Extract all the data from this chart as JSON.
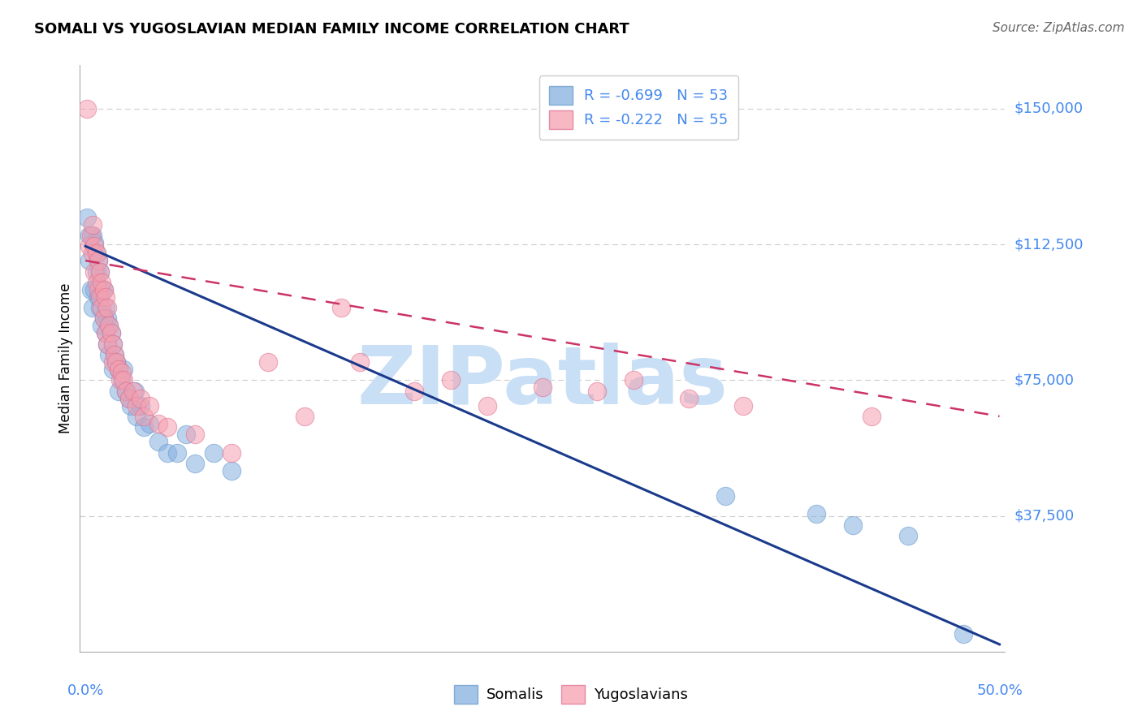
{
  "title": "SOMALI VS YUGOSLAVIAN MEDIAN FAMILY INCOME CORRELATION CHART",
  "source": "Source: ZipAtlas.com",
  "ylabel": "Median Family Income",
  "y_ticks": [
    0,
    37500,
    75000,
    112500,
    150000
  ],
  "y_tick_labels": [
    "",
    "$37,500",
    "$75,000",
    "$112,500",
    "$150,000"
  ],
  "xlim": [
    -0.003,
    0.503
  ],
  "ylim": [
    0,
    162000
  ],
  "somali_R": "-0.699",
  "somali_N": "53",
  "yugo_R": "-0.222",
  "yugo_N": "55",
  "somali_color": "#85b0e0",
  "somali_edge": "#6699cc",
  "somali_line_color": "#1a3a8c",
  "yugo_color": "#f5a0b0",
  "yugo_edge": "#e07090",
  "yugo_line_color": "#cc3366",
  "label_color": "#4488ee",
  "grid_color": "#cccccc",
  "watermark_color": "#c8dff5",
  "somali_x": [
    0.001,
    0.002,
    0.002,
    0.003,
    0.004,
    0.004,
    0.005,
    0.005,
    0.006,
    0.006,
    0.007,
    0.007,
    0.008,
    0.008,
    0.009,
    0.009,
    0.01,
    0.01,
    0.011,
    0.011,
    0.012,
    0.012,
    0.013,
    0.013,
    0.014,
    0.015,
    0.015,
    0.016,
    0.017,
    0.018,
    0.018,
    0.02,
    0.021,
    0.022,
    0.024,
    0.025,
    0.027,
    0.028,
    0.03,
    0.032,
    0.035,
    0.04,
    0.045,
    0.05,
    0.055,
    0.06,
    0.07,
    0.08,
    0.35,
    0.4,
    0.42,
    0.45,
    0.48
  ],
  "somali_y": [
    120000,
    115000,
    108000,
    100000,
    115000,
    95000,
    113000,
    100000,
    110000,
    105000,
    108000,
    98000,
    105000,
    95000,
    100000,
    90000,
    100000,
    92000,
    95000,
    88000,
    92000,
    85000,
    90000,
    82000,
    88000,
    85000,
    78000,
    82000,
    80000,
    78000,
    72000,
    75000,
    78000,
    72000,
    70000,
    68000,
    72000,
    65000,
    68000,
    62000,
    63000,
    58000,
    55000,
    55000,
    60000,
    52000,
    55000,
    50000,
    43000,
    38000,
    35000,
    32000,
    5000
  ],
  "yugo_x": [
    0.001,
    0.002,
    0.003,
    0.004,
    0.004,
    0.005,
    0.005,
    0.006,
    0.006,
    0.007,
    0.007,
    0.008,
    0.008,
    0.009,
    0.009,
    0.01,
    0.01,
    0.011,
    0.011,
    0.012,
    0.012,
    0.013,
    0.014,
    0.015,
    0.015,
    0.016,
    0.017,
    0.018,
    0.019,
    0.02,
    0.021,
    0.022,
    0.024,
    0.026,
    0.028,
    0.03,
    0.032,
    0.035,
    0.04,
    0.045,
    0.06,
    0.08,
    0.1,
    0.12,
    0.15,
    0.18,
    0.2,
    0.22,
    0.25,
    0.28,
    0.3,
    0.33,
    0.36,
    0.43,
    0.14
  ],
  "yugo_y": [
    150000,
    112000,
    115000,
    110000,
    118000,
    112000,
    105000,
    110000,
    102000,
    108000,
    100000,
    105000,
    98000,
    102000,
    95000,
    100000,
    92000,
    98000,
    88000,
    95000,
    85000,
    90000,
    88000,
    85000,
    80000,
    82000,
    80000,
    78000,
    75000,
    77000,
    75000,
    72000,
    70000,
    72000,
    68000,
    70000,
    65000,
    68000,
    63000,
    62000,
    60000,
    55000,
    80000,
    65000,
    80000,
    72000,
    75000,
    68000,
    73000,
    72000,
    75000,
    70000,
    68000,
    65000,
    95000
  ],
  "legend_label_somali": "Somalis",
  "legend_label_yugo": "Yugoslavians"
}
